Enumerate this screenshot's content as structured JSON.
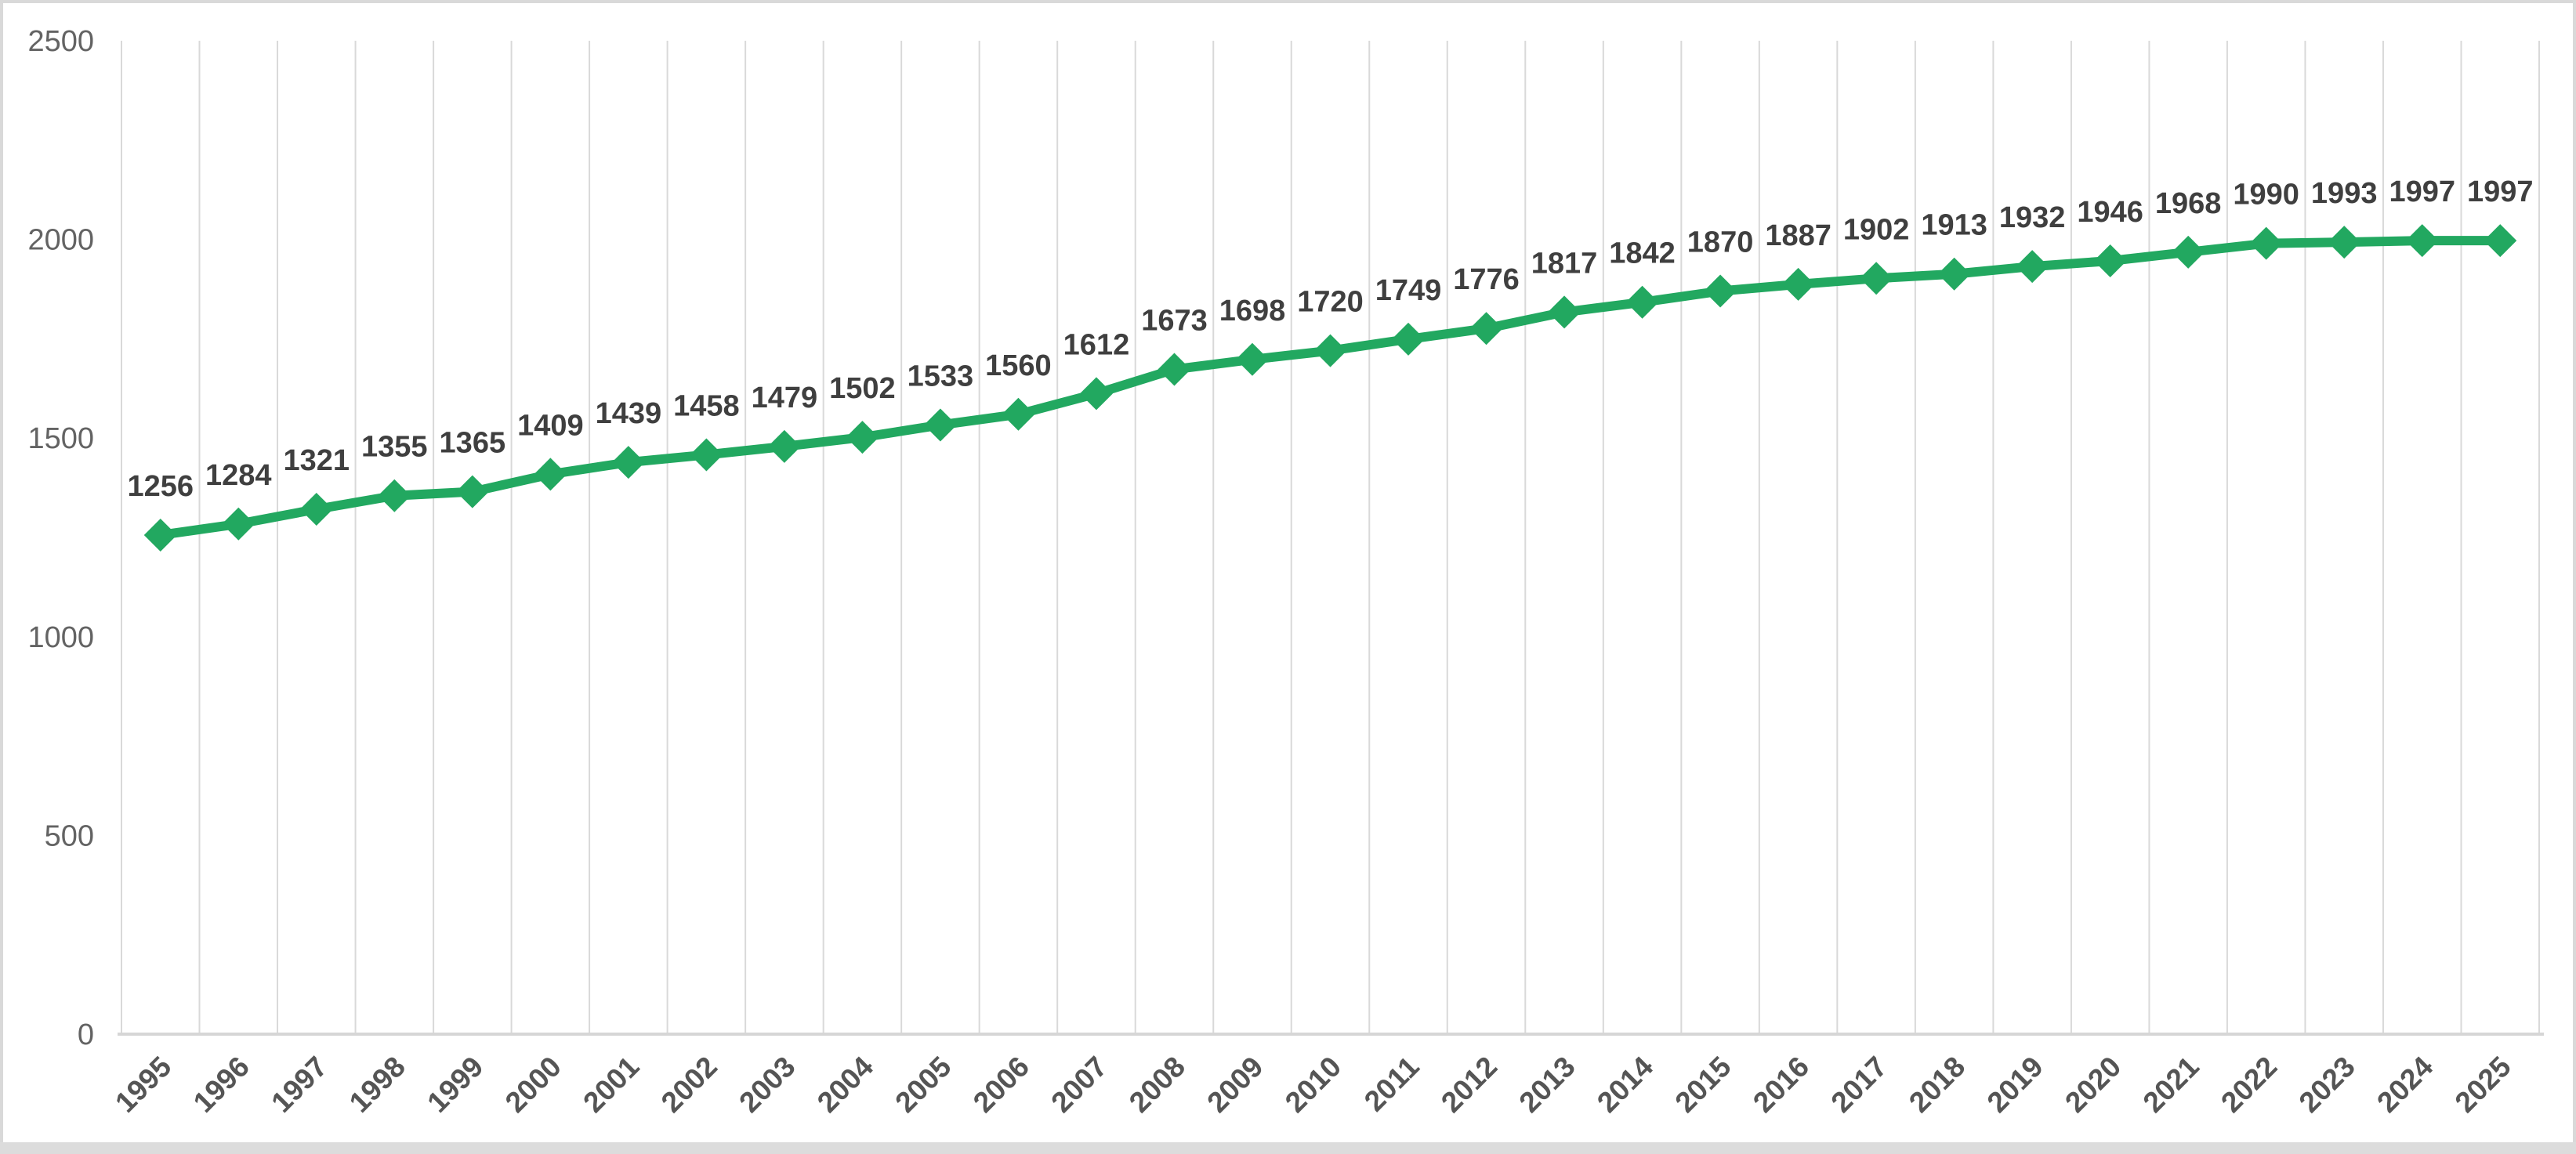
{
  "chart_data": {
    "type": "line",
    "title": "",
    "categories": [
      "1995",
      "1996",
      "1997",
      "1998",
      "1999",
      "2000",
      "2001",
      "2002",
      "2003",
      "2004",
      "2005",
      "2006",
      "2007",
      "2008",
      "2009",
      "2010",
      "2011",
      "2012",
      "2013",
      "2014",
      "2015",
      "2016",
      "2017",
      "2018",
      "2019",
      "2020",
      "2021",
      "2022",
      "2023",
      "2024",
      "2025"
    ],
    "values": [
      1256,
      1284,
      1321,
      1355,
      1365,
      1409,
      1439,
      1458,
      1479,
      1502,
      1533,
      1560,
      1612,
      1673,
      1698,
      1720,
      1749,
      1776,
      1817,
      1842,
      1870,
      1887,
      1902,
      1913,
      1932,
      1946,
      1968,
      1990,
      1993,
      1997,
      1997
    ],
    "xlabel": "",
    "ylabel": "",
    "ylim": [
      0,
      2500
    ],
    "yticks": [
      0,
      500,
      1000,
      1500,
      2000,
      2500
    ],
    "grid": "vertical-only",
    "legend": "none",
    "marker": "diamond",
    "data_labels": "above-points",
    "x_tick_rotation": -45,
    "colors": {
      "series": "#22a860",
      "gridline": "#d9d9d9",
      "axis_line": "#d6d6d6",
      "tick_label": "#636363",
      "x_tick_label": "#555555",
      "data_label": "#3f3f3f",
      "background": "#ffffff",
      "frame": "#d9d9d9",
      "bottom_strip": "#dcdcdc"
    }
  }
}
